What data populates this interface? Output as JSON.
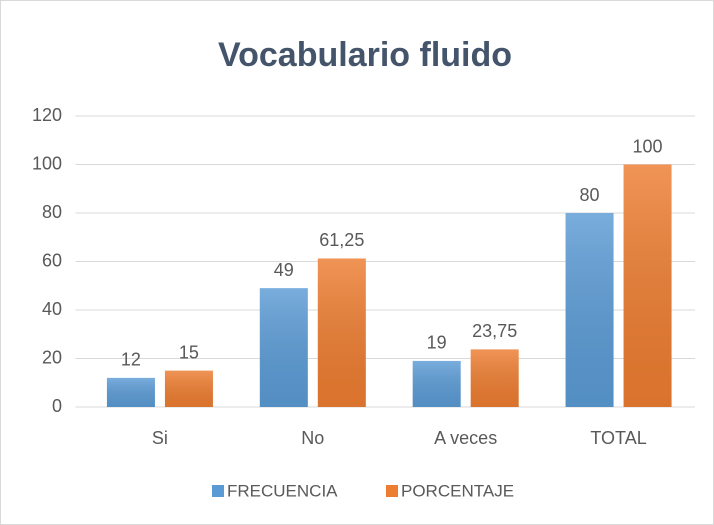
{
  "chart_data": {
    "type": "bar",
    "title": "Vocabulario fluido",
    "categories": [
      "Si",
      "No",
      "A veces",
      "TOTAL"
    ],
    "series": [
      {
        "name": "FRECUENCIA",
        "color": "#5b9bd5",
        "values": [
          12,
          49,
          19,
          80
        ]
      },
      {
        "name": "PORCENTAJE",
        "color": "#ed7d31",
        "values": [
          15,
          61.25,
          23.75,
          100
        ],
        "value_labels": [
          "15",
          "61,25",
          "23,75",
          "100"
        ]
      }
    ],
    "ylim": [
      0,
      120
    ],
    "yticks": [
      0,
      20,
      40,
      60,
      80,
      100,
      120
    ],
    "grid": true,
    "legend": "bottom"
  }
}
